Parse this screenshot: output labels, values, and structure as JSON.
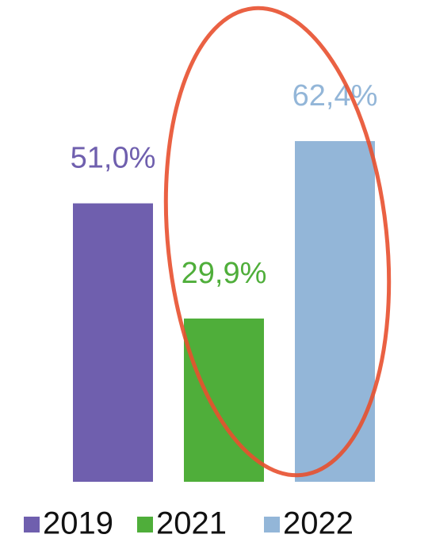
{
  "chart_data": {
    "type": "bar",
    "categories": [
      "2019",
      "2021",
      "2022"
    ],
    "values": [
      51.0,
      29.9,
      62.4
    ],
    "value_labels": [
      "51,0%",
      "29,9%",
      "62,4%"
    ],
    "colors": [
      "#6f5fae",
      "#4fae3a",
      "#93b6d8"
    ]
  }
}
